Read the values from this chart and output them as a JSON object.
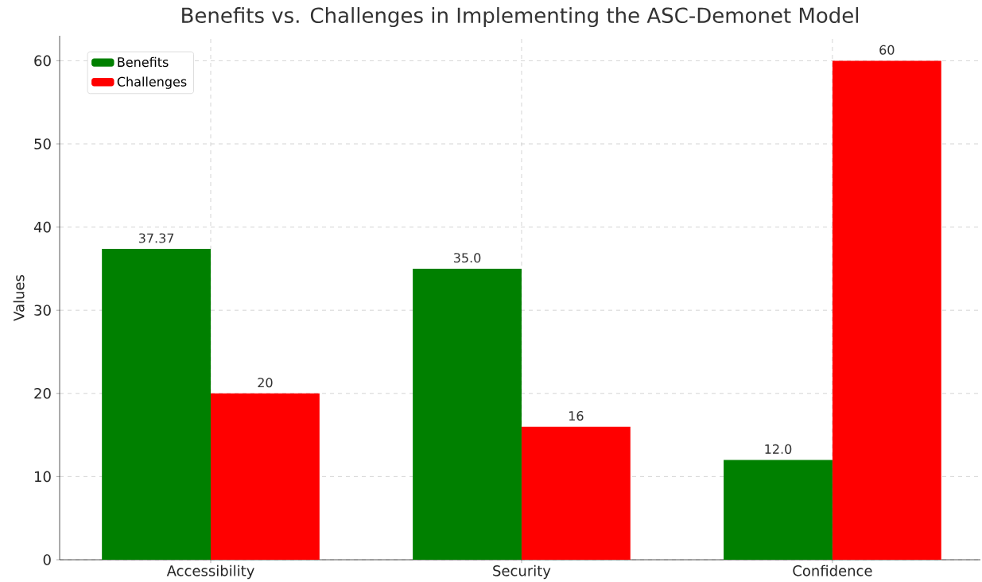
{
  "chart_data": {
    "type": "bar",
    "title": "Benefits vs. Challenges in Implementing the ASC-Demonet Model",
    "ylabel": "Values",
    "categories": [
      "Accessibility",
      "Security",
      "Confidence"
    ],
    "series": [
      {
        "name": "Benefits",
        "color": "#008000",
        "values": [
          37.37,
          35.0,
          12.0
        ],
        "value_labels": [
          "37.37",
          "35.0",
          "12.0"
        ]
      },
      {
        "name": "Challenges",
        "color": "#ff0000",
        "values": [
          20,
          16,
          60
        ],
        "value_labels": [
          "20",
          "16",
          "60"
        ]
      }
    ],
    "ylim": [
      0,
      63
    ],
    "yticks": [
      0,
      10,
      20,
      30,
      40,
      50,
      60
    ],
    "grid": true,
    "legend": "top left"
  }
}
